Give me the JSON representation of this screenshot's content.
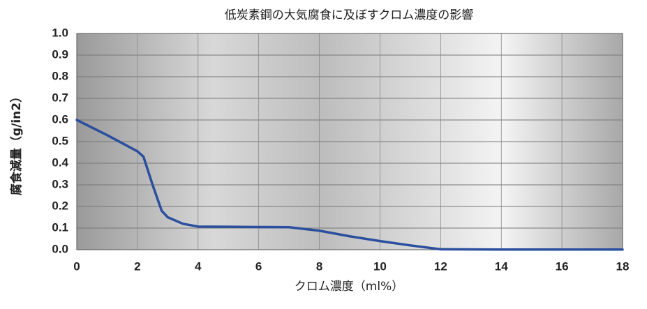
{
  "chart_data": {
    "type": "line",
    "title": "低炭素鋼の大気腐食に及ぼすクロム濃度の影響",
    "x_label": "クロム濃度（ml%）",
    "y_label": "腐食減量（g/in2）",
    "series": [
      {
        "name": "腐食減量",
        "color": "#2b4f9e",
        "x": [
          0,
          1,
          2,
          2.2,
          2.5,
          2.8,
          3,
          3.5,
          4,
          5,
          6,
          7,
          8,
          9,
          10,
          11,
          12,
          14,
          16,
          18
        ],
        "values": [
          0.6,
          0.53,
          0.455,
          0.43,
          0.3,
          0.18,
          0.15,
          0.12,
          0.107,
          0.106,
          0.105,
          0.104,
          0.088,
          0.062,
          0.04,
          0.02,
          0.002,
          0.001,
          0.001,
          0.001
        ]
      }
    ],
    "xlim": [
      0,
      18
    ],
    "xticks": [
      0,
      2,
      4,
      6,
      8,
      10,
      12,
      14,
      16,
      18
    ],
    "ylim": [
      0,
      1
    ],
    "yticks": [
      {
        "value": 0,
        "label": "0.0"
      },
      {
        "value": 0.1,
        "label": "0.1"
      },
      {
        "value": 0.2,
        "label": "0.2"
      },
      {
        "value": 0.3,
        "label": "0.3"
      },
      {
        "value": 0.4,
        "label": "0.4"
      },
      {
        "value": 0.5,
        "label": "0.5"
      },
      {
        "value": 0.6,
        "label": "0.6"
      },
      {
        "value": 0.7,
        "label": "0.7"
      },
      {
        "value": 0.8,
        "label": "0.8"
      },
      {
        "value": 0.9,
        "label": "0.9"
      },
      {
        "value": 1,
        "label": "1.0"
      }
    ],
    "grid": true
  }
}
